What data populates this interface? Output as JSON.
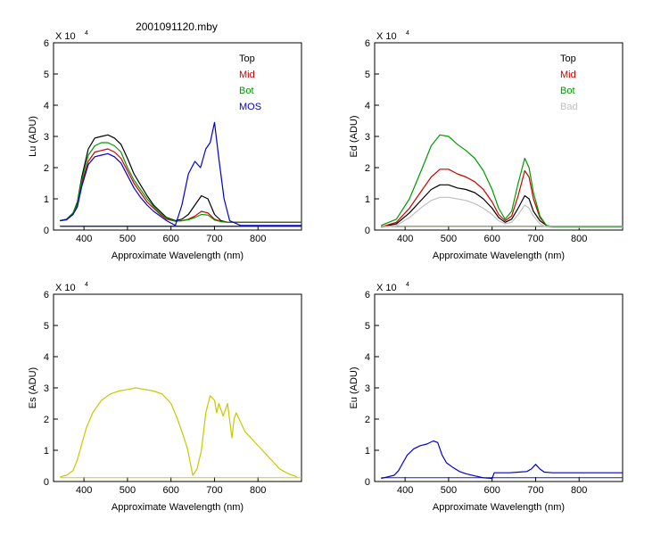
{
  "figure_title": "2001091120.mby",
  "chart_data": [
    {
      "type": "line",
      "panel": "top-left",
      "ylabel": "Lu (ADU)",
      "xlabel": "Approximate Wavelength (nm)",
      "multiplier": "X 10",
      "multiplier_exp": "4",
      "xlim": [
        330,
        900
      ],
      "ylim": [
        0,
        6
      ],
      "xticks": [
        400,
        500,
        600,
        700,
        800
      ],
      "yticks": [
        0,
        1,
        2,
        3,
        4,
        5,
        6
      ],
      "legend": [
        {
          "label": "Top",
          "color": "#000000"
        },
        {
          "label": "Mid",
          "color": "#cc0000"
        },
        {
          "label": "Bot",
          "color": "#009900"
        },
        {
          "label": "MOS",
          "color": "#0000cc"
        }
      ],
      "legend_position": "top-right",
      "series": [
        {
          "name": "Top",
          "color": "#000000",
          "x": [
            345,
            360,
            375,
            385,
            395,
            410,
            425,
            440,
            455,
            470,
            485,
            500,
            515,
            530,
            545,
            560,
            575,
            590,
            610,
            625,
            640,
            655,
            670,
            685,
            700,
            715,
            730,
            760,
            800,
            850,
            900
          ],
          "y": [
            0.3,
            0.35,
            0.55,
            0.9,
            1.7,
            2.6,
            2.95,
            3.0,
            3.05,
            2.95,
            2.75,
            2.3,
            1.8,
            1.45,
            1.1,
            0.8,
            0.6,
            0.4,
            0.3,
            0.35,
            0.5,
            0.8,
            1.1,
            1.0,
            0.5,
            0.3,
            0.25,
            0.25,
            0.25,
            0.25,
            0.25
          ]
        },
        {
          "name": "Mid",
          "color": "#cc0000",
          "x": [
            345,
            360,
            375,
            385,
            395,
            410,
            425,
            440,
            455,
            470,
            485,
            500,
            515,
            530,
            545,
            560,
            575,
            590,
            610,
            625,
            640,
            655,
            670,
            685,
            700,
            715,
            730,
            760,
            800,
            850,
            900
          ],
          "y": [
            0.3,
            0.33,
            0.5,
            0.8,
            1.5,
            2.2,
            2.5,
            2.55,
            2.6,
            2.5,
            2.3,
            1.9,
            1.5,
            1.2,
            0.9,
            0.7,
            0.5,
            0.35,
            0.28,
            0.3,
            0.35,
            0.45,
            0.6,
            0.55,
            0.35,
            0.28,
            0.25,
            0.25,
            0.25,
            0.25,
            0.25
          ]
        },
        {
          "name": "Bot",
          "color": "#009900",
          "x": [
            345,
            360,
            375,
            385,
            395,
            410,
            425,
            440,
            455,
            470,
            485,
            500,
            515,
            530,
            545,
            560,
            575,
            590,
            610,
            625,
            640,
            655,
            670,
            685,
            700,
            715,
            730,
            760,
            800,
            850,
            900
          ],
          "y": [
            0.3,
            0.35,
            0.55,
            0.85,
            1.6,
            2.4,
            2.7,
            2.8,
            2.8,
            2.7,
            2.5,
            2.0,
            1.6,
            1.3,
            1.0,
            0.75,
            0.55,
            0.38,
            0.28,
            0.3,
            0.33,
            0.4,
            0.5,
            0.48,
            0.32,
            0.27,
            0.25,
            0.25,
            0.25,
            0.25,
            0.25
          ]
        },
        {
          "name": "MOS",
          "color": "#0000cc",
          "x": [
            345,
            360,
            375,
            385,
            395,
            410,
            425,
            440,
            455,
            470,
            485,
            500,
            515,
            530,
            545,
            560,
            575,
            590,
            610,
            625,
            640,
            655,
            668,
            680,
            690,
            700,
            710,
            722,
            735,
            760,
            800,
            850,
            900
          ],
          "y": [
            0.3,
            0.33,
            0.5,
            0.75,
            1.4,
            2.1,
            2.35,
            2.4,
            2.45,
            2.35,
            2.15,
            1.75,
            1.35,
            1.05,
            0.8,
            0.6,
            0.45,
            0.3,
            0.15,
            0.8,
            1.8,
            2.2,
            2.0,
            2.6,
            2.8,
            3.45,
            2.3,
            1.0,
            0.3,
            0.15,
            0.15,
            0.15,
            0.15
          ]
        }
      ]
    },
    {
      "type": "line",
      "panel": "top-right",
      "ylabel": "Ed (ADU)",
      "xlabel": "Approximate Wavelength (nm)",
      "multiplier": "X 10",
      "multiplier_exp": "4",
      "xlim": [
        330,
        900
      ],
      "ylim": [
        0,
        6
      ],
      "xticks": [
        400,
        500,
        600,
        700,
        800
      ],
      "yticks": [
        0,
        1,
        2,
        3,
        4,
        5,
        6
      ],
      "legend": [
        {
          "label": "Top",
          "color": "#000000"
        },
        {
          "label": "Mid",
          "color": "#cc0000"
        },
        {
          "label": "Bot",
          "color": "#009900"
        },
        {
          "label": "Bad",
          "color": "#c0c0c0"
        }
      ],
      "legend_position": "top-right",
      "series": [
        {
          "name": "Top",
          "color": "#000000",
          "x": [
            345,
            380,
            410,
            440,
            460,
            480,
            500,
            520,
            540,
            560,
            580,
            600,
            615,
            630,
            645,
            660,
            675,
            685,
            695,
            710,
            725,
            740,
            800,
            900
          ],
          "y": [
            0.1,
            0.2,
            0.55,
            1.0,
            1.3,
            1.45,
            1.45,
            1.35,
            1.3,
            1.2,
            1.0,
            0.7,
            0.4,
            0.25,
            0.35,
            0.7,
            1.1,
            1.0,
            0.6,
            0.3,
            0.15,
            0.1,
            0.1,
            0.1
          ]
        },
        {
          "name": "Mid",
          "color": "#cc0000",
          "x": [
            345,
            380,
            410,
            440,
            460,
            480,
            500,
            520,
            540,
            560,
            580,
            600,
            615,
            630,
            645,
            660,
            675,
            685,
            695,
            710,
            725,
            740,
            800,
            900
          ],
          "y": [
            0.1,
            0.25,
            0.7,
            1.3,
            1.7,
            1.95,
            1.95,
            1.8,
            1.7,
            1.55,
            1.3,
            0.9,
            0.5,
            0.3,
            0.45,
            1.1,
            1.9,
            1.7,
            1.0,
            0.4,
            0.15,
            0.1,
            0.1,
            0.1
          ]
        },
        {
          "name": "Bot",
          "color": "#009900",
          "x": [
            345,
            380,
            410,
            440,
            460,
            480,
            500,
            520,
            540,
            560,
            580,
            600,
            615,
            630,
            645,
            660,
            675,
            685,
            695,
            710,
            725,
            740,
            800,
            900
          ],
          "y": [
            0.15,
            0.35,
            1.0,
            2.0,
            2.7,
            3.05,
            3.0,
            2.75,
            2.55,
            2.3,
            1.9,
            1.3,
            0.7,
            0.35,
            0.6,
            1.5,
            2.3,
            2.0,
            1.2,
            0.45,
            0.15,
            0.1,
            0.1,
            0.1
          ]
        },
        {
          "name": "Bad",
          "color": "#c0c0c0",
          "x": [
            345,
            380,
            410,
            440,
            460,
            480,
            500,
            520,
            540,
            560,
            580,
            600,
            615,
            630,
            645,
            660,
            675,
            685,
            695,
            710,
            725,
            740,
            800,
            900
          ],
          "y": [
            0.08,
            0.15,
            0.4,
            0.75,
            0.95,
            1.05,
            1.05,
            1.0,
            0.95,
            0.85,
            0.7,
            0.5,
            0.3,
            0.2,
            0.25,
            0.5,
            0.8,
            0.7,
            0.45,
            0.2,
            0.1,
            0.08,
            0.08,
            0.08
          ]
        }
      ]
    },
    {
      "type": "line",
      "panel": "bottom-left",
      "ylabel": "Es (ADU)",
      "xlabel": "Approximate Wavelength (nm)",
      "multiplier": "X 10",
      "multiplier_exp": "4",
      "xlim": [
        330,
        900
      ],
      "ylim": [
        0,
        6
      ],
      "xticks": [
        400,
        500,
        600,
        700,
        800
      ],
      "yticks": [
        0,
        1,
        2,
        3,
        4,
        5,
        6
      ],
      "series": [
        {
          "name": "",
          "color": "#c8c800",
          "x": [
            345,
            360,
            375,
            385,
            395,
            405,
            420,
            440,
            460,
            480,
            500,
            520,
            540,
            560,
            580,
            600,
            615,
            630,
            638,
            650,
            660,
            670,
            680,
            690,
            700,
            705,
            710,
            720,
            730,
            740,
            745,
            750,
            760,
            770,
            790,
            810,
            830,
            850,
            870,
            890
          ],
          "y": [
            0.15,
            0.2,
            0.35,
            0.7,
            1.2,
            1.7,
            2.2,
            2.6,
            2.8,
            2.9,
            2.95,
            3.0,
            2.95,
            2.9,
            2.8,
            2.5,
            2.0,
            1.4,
            1.05,
            0.2,
            0.4,
            1.0,
            2.2,
            2.75,
            2.6,
            2.2,
            2.5,
            2.1,
            2.5,
            1.4,
            2.0,
            2.2,
            1.9,
            1.6,
            1.3,
            1.0,
            0.7,
            0.4,
            0.25,
            0.15
          ]
        }
      ]
    },
    {
      "type": "line",
      "panel": "bottom-right",
      "ylabel": "Eu (ADU)",
      "xlabel": "Approximate Wavelength (nm)",
      "multiplier": "X 10",
      "multiplier_exp": "4",
      "xlim": [
        330,
        900
      ],
      "ylim": [
        0,
        6
      ],
      "xticks": [
        400,
        500,
        600,
        700,
        800
      ],
      "yticks": [
        0,
        1,
        2,
        3,
        4,
        5,
        6
      ],
      "series": [
        {
          "name": "",
          "color": "#0000cc",
          "x": [
            345,
            360,
            375,
            385,
            395,
            405,
            420,
            435,
            450,
            465,
            475,
            485,
            495,
            510,
            525,
            540,
            560,
            580,
            600,
            605,
            615,
            640,
            660,
            680,
            690,
            700,
            710,
            720,
            740,
            800,
            850,
            900
          ],
          "y": [
            0.1,
            0.15,
            0.2,
            0.35,
            0.6,
            0.85,
            1.05,
            1.15,
            1.2,
            1.3,
            1.25,
            0.85,
            0.6,
            0.45,
            0.32,
            0.25,
            0.18,
            0.12,
            0.1,
            0.28,
            0.28,
            0.28,
            0.3,
            0.32,
            0.4,
            0.55,
            0.4,
            0.3,
            0.28,
            0.28,
            0.28,
            0.28
          ]
        }
      ]
    }
  ]
}
